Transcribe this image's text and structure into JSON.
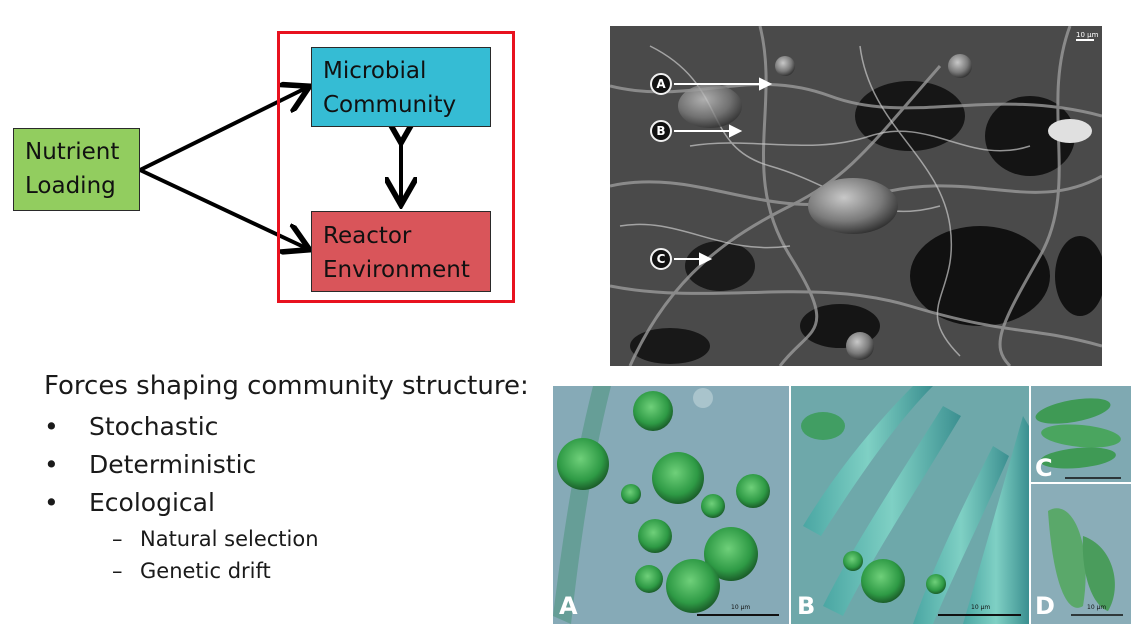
{
  "diagram": {
    "nutrient_box": {
      "line1": "Nutrient",
      "line2": "Loading"
    },
    "microbial_box": {
      "line1": "Microbial",
      "line2": "Community"
    },
    "reactor_box": {
      "line1": "Reactor",
      "line2": "Environment"
    }
  },
  "forces": {
    "heading": "Forces shaping community structure:",
    "items": [
      "Stochastic",
      "Deterministic",
      "Ecological"
    ],
    "subitems": [
      "Natural selection",
      "Genetic drift"
    ],
    "bullet": "•",
    "dash": "–"
  },
  "sem_image": {
    "labels": [
      "A",
      "B",
      "C"
    ],
    "scale_bar": "10 µm"
  },
  "micrographs": {
    "panels": [
      "A",
      "B",
      "C",
      "D"
    ],
    "scale_bar": "10 µm"
  },
  "colors": {
    "nutrient": "#92cd5f",
    "microbial": "#35bcd4",
    "reactor": "#d9555a",
    "frame": "#e8121f"
  }
}
